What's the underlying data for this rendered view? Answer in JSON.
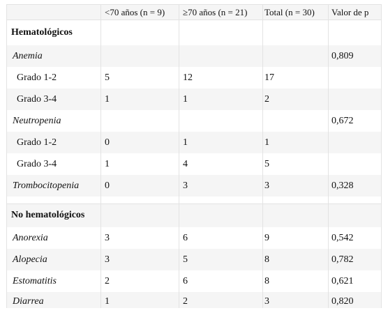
{
  "table": {
    "headers": [
      "",
      "<70 años (n = 9)",
      "≥70 años (n = 21)",
      "Total (n = 30)",
      "Valor de p"
    ],
    "sections": [
      {
        "title": "Hematológicos",
        "rows": [
          {
            "label": "Anemia",
            "italic": true,
            "values": [
              "",
              "",
              "",
              "0,809"
            ]
          },
          {
            "label": "Grado 1-2",
            "italic": false,
            "values": [
              "5",
              "12",
              "17",
              ""
            ]
          },
          {
            "label": "Grado 3-4",
            "italic": false,
            "values": [
              "1",
              "1",
              "2",
              ""
            ]
          },
          {
            "label": "Neutropenia",
            "italic": true,
            "values": [
              "",
              "",
              "",
              "0,672"
            ]
          },
          {
            "label": "Grado 1-2",
            "italic": false,
            "values": [
              "0",
              "1",
              "1",
              ""
            ]
          },
          {
            "label": "Grado 3-4",
            "italic": false,
            "values": [
              "1",
              "4",
              "5",
              ""
            ]
          },
          {
            "label": "Trombocitopenia",
            "italic": true,
            "values": [
              "0",
              "3",
              "3",
              "0,328"
            ]
          }
        ]
      },
      {
        "title": "No hematológicos",
        "rows": [
          {
            "label": "Anorexia",
            "italic": true,
            "values": [
              "3",
              "6",
              "9",
              "0,542"
            ]
          },
          {
            "label": "Alopecia",
            "italic": true,
            "values": [
              "3",
              "5",
              "8",
              "0,782"
            ]
          },
          {
            "label": "Estomatitis",
            "italic": true,
            "values": [
              "2",
              "6",
              "8",
              "0,621"
            ]
          },
          {
            "label": "Diarrea",
            "italic": true,
            "values": [
              "1",
              "2",
              "3",
              "0,820"
            ]
          }
        ]
      }
    ]
  }
}
